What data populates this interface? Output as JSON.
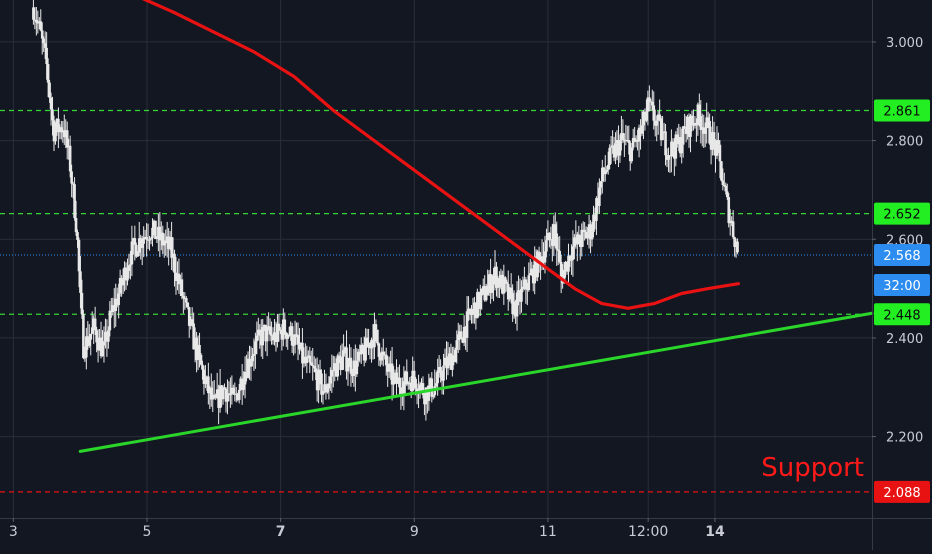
{
  "colors": {
    "background": "#131722",
    "grid": "#2a2e39",
    "candles": "#e8e8e8",
    "moving_average": "#e81212",
    "trendline": "#2ad62a",
    "level_line": "#36d636",
    "level_tag": "#22ee22",
    "support_line": "#e81212",
    "support_text": "#ff1a1a",
    "current_price": "#2d8cf0",
    "price_text": "#c9ccd4"
  },
  "chart_data": {
    "type": "candlestick",
    "title": "",
    "xlabel": "",
    "ylabel": "",
    "x_range": [
      2.8,
      15.85
    ],
    "ylim": [
      2.035,
      3.085
    ],
    "grid": true,
    "y_ticks": [
      {
        "value": 2.2,
        "label": "2.200"
      },
      {
        "value": 2.4,
        "label": "2.400"
      },
      {
        "value": 2.6,
        "label": "2.600"
      },
      {
        "value": 2.8,
        "label": "2.800"
      },
      {
        "value": 3.0,
        "label": "3.000"
      }
    ],
    "x_ticks": [
      {
        "x": 3,
        "label": "3",
        "bold": false
      },
      {
        "x": 5,
        "label": "5",
        "bold": false
      },
      {
        "x": 7,
        "label": "7",
        "bold": true
      },
      {
        "x": 9,
        "label": "9",
        "bold": false
      },
      {
        "x": 11,
        "label": "11",
        "bold": false
      },
      {
        "x": 12.5,
        "label": "12:00",
        "bold": false
      },
      {
        "x": 13.5,
        "label": "14",
        "bold": true
      }
    ],
    "price_path": [
      [
        3.3,
        3.07
      ],
      [
        3.4,
        3.02
      ],
      [
        3.5,
        2.95
      ],
      [
        3.6,
        2.82
      ],
      [
        3.75,
        2.83
      ],
      [
        3.85,
        2.75
      ],
      [
        3.95,
        2.62
      ],
      [
        4.0,
        2.48
      ],
      [
        4.05,
        2.38
      ],
      [
        4.2,
        2.42
      ],
      [
        4.35,
        2.37
      ],
      [
        4.45,
        2.44
      ],
      [
        4.6,
        2.5
      ],
      [
        4.75,
        2.57
      ],
      [
        4.9,
        2.6
      ],
      [
        5.05,
        2.62
      ],
      [
        5.2,
        2.6
      ],
      [
        5.35,
        2.58
      ],
      [
        5.5,
        2.5
      ],
      [
        5.65,
        2.42
      ],
      [
        5.85,
        2.32
      ],
      [
        6.0,
        2.26
      ],
      [
        6.15,
        2.3
      ],
      [
        6.3,
        2.27
      ],
      [
        6.45,
        2.33
      ],
      [
        6.6,
        2.38
      ],
      [
        6.75,
        2.41
      ],
      [
        6.9,
        2.4
      ],
      [
        7.05,
        2.42
      ],
      [
        7.2,
        2.4
      ],
      [
        7.35,
        2.35
      ],
      [
        7.5,
        2.33
      ],
      [
        7.65,
        2.29
      ],
      [
        7.8,
        2.34
      ],
      [
        7.95,
        2.36
      ],
      [
        8.1,
        2.34
      ],
      [
        8.25,
        2.37
      ],
      [
        8.4,
        2.41
      ],
      [
        8.55,
        2.35
      ],
      [
        8.7,
        2.31
      ],
      [
        8.85,
        2.31
      ],
      [
        9.0,
        2.32
      ],
      [
        9.15,
        2.29
      ],
      [
        9.3,
        2.3
      ],
      [
        9.45,
        2.34
      ],
      [
        9.6,
        2.37
      ],
      [
        9.75,
        2.42
      ],
      [
        9.9,
        2.46
      ],
      [
        10.05,
        2.49
      ],
      [
        10.2,
        2.53
      ],
      [
        10.35,
        2.5
      ],
      [
        10.5,
        2.46
      ],
      [
        10.65,
        2.5
      ],
      [
        10.8,
        2.54
      ],
      [
        10.95,
        2.58
      ],
      [
        11.1,
        2.62
      ],
      [
        11.2,
        2.52
      ],
      [
        11.35,
        2.58
      ],
      [
        11.5,
        2.6
      ],
      [
        11.65,
        2.62
      ],
      [
        11.8,
        2.72
      ],
      [
        11.95,
        2.77
      ],
      [
        12.1,
        2.8
      ],
      [
        12.25,
        2.78
      ],
      [
        12.4,
        2.82
      ],
      [
        12.5,
        2.87
      ],
      [
        12.65,
        2.83
      ],
      [
        12.8,
        2.78
      ],
      [
        12.95,
        2.79
      ],
      [
        13.1,
        2.83
      ],
      [
        13.25,
        2.85
      ],
      [
        13.4,
        2.82
      ],
      [
        13.55,
        2.77
      ],
      [
        13.65,
        2.69
      ],
      [
        13.75,
        2.63
      ],
      [
        13.85,
        2.57
      ]
    ],
    "moving_average": [
      [
        4.9,
        3.09
      ],
      [
        5.4,
        3.06
      ],
      [
        6.0,
        3.02
      ],
      [
        6.6,
        2.98
      ],
      [
        7.2,
        2.93
      ],
      [
        7.8,
        2.86
      ],
      [
        8.4,
        2.8
      ],
      [
        9.0,
        2.74
      ],
      [
        9.6,
        2.68
      ],
      [
        10.2,
        2.62
      ],
      [
        10.6,
        2.58
      ],
      [
        11.0,
        2.54
      ],
      [
        11.4,
        2.5
      ],
      [
        11.8,
        2.47
      ],
      [
        12.2,
        2.46
      ],
      [
        12.6,
        2.47
      ],
      [
        13.0,
        2.49
      ],
      [
        13.4,
        2.5
      ],
      [
        13.85,
        2.51
      ]
    ],
    "trendline": {
      "start": [
        4.0,
        2.17
      ],
      "end": [
        15.85,
        2.45
      ]
    },
    "levels": [
      {
        "value": 2.861,
        "label": "2.861"
      },
      {
        "value": 2.652,
        "label": "2.652"
      },
      {
        "value": 2.448,
        "label": "2.448"
      }
    ],
    "current_price": {
      "value": 2.568,
      "label": "2.568",
      "countdown": "32:00"
    },
    "support": {
      "value": 2.088,
      "label": "2.088",
      "annotation": "Support"
    }
  }
}
